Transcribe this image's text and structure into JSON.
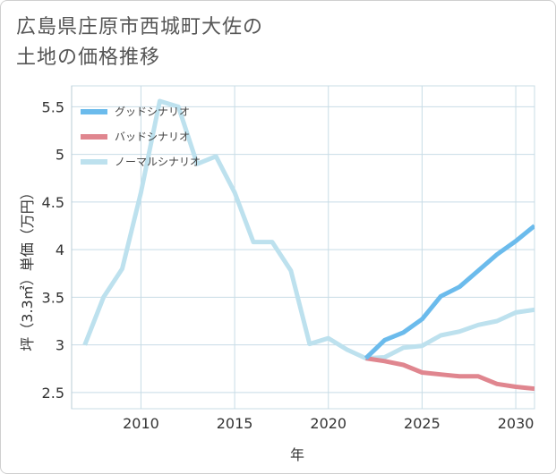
{
  "chart_data": {
    "type": "line",
    "title_lines": [
      "広島県庄原市西城町大佐の",
      "土地の価格推移"
    ],
    "xlabel": "年",
    "ylabel": "坪（3.3㎡）単価（万円）",
    "xlim": [
      2006.3,
      2031
    ],
    "ylim": [
      2.33,
      5.72
    ],
    "x_ticks": [
      2010,
      2015,
      2020,
      2025,
      2030
    ],
    "y_ticks": [
      2.5,
      3,
      3.5,
      4,
      4.5,
      5,
      5.5
    ],
    "y_tick_labels": [
      "2.5",
      "3",
      "3.5",
      "4",
      "4.5",
      "5",
      "5.5"
    ],
    "grid": true,
    "legend_position": "top-left",
    "series": [
      {
        "name": "グッドシナリオ",
        "color": "#6bbbec",
        "x": [
          2022,
          2023,
          2024,
          2025,
          2026,
          2027,
          2028,
          2029,
          2030,
          2031
        ],
        "y": [
          2.86,
          3.05,
          3.13,
          3.27,
          3.51,
          3.61,
          3.78,
          3.95,
          4.09,
          4.25
        ]
      },
      {
        "name": "バッドシナリオ",
        "color": "#e0868f",
        "x": [
          2022,
          2023,
          2024,
          2025,
          2026,
          2027,
          2028,
          2029,
          2030,
          2031
        ],
        "y": [
          2.86,
          2.83,
          2.79,
          2.71,
          2.69,
          2.67,
          2.67,
          2.59,
          2.56,
          2.54
        ]
      },
      {
        "name": "ノーマルシナリオ",
        "color": "#bde1ee",
        "x": [
          2007,
          2008,
          2009,
          2010,
          2011,
          2012,
          2013,
          2014,
          2015,
          2016,
          2017,
          2018,
          2019,
          2020,
          2021,
          2022,
          2023,
          2024,
          2025,
          2026,
          2027,
          2028,
          2029,
          2030,
          2031
        ],
        "y": [
          3.0,
          3.5,
          3.8,
          4.6,
          5.56,
          5.5,
          4.9,
          4.98,
          4.6,
          4.08,
          4.08,
          3.78,
          3.01,
          3.07,
          2.95,
          2.86,
          2.87,
          2.97,
          2.99,
          3.1,
          3.14,
          3.21,
          3.25,
          3.34,
          3.37
        ]
      }
    ]
  }
}
